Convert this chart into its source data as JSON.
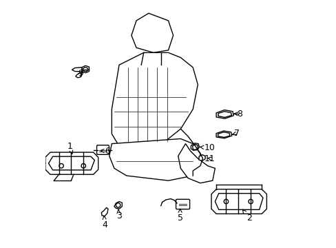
{
  "background_color": "#ffffff",
  "line_color": "#000000",
  "line_width": 1.0,
  "figsize": [
    4.89,
    3.6
  ],
  "dpi": 100
}
